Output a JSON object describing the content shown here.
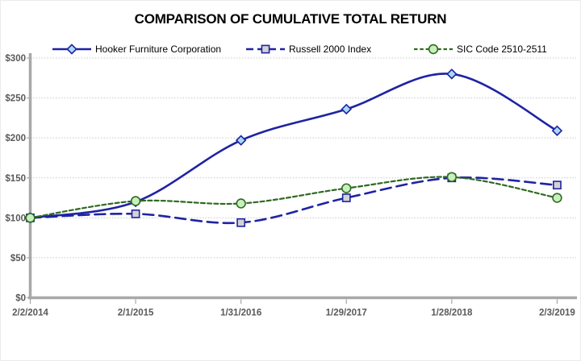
{
  "title": "COMPARISON OF CUMULATIVE TOTAL RETURN",
  "colors": {
    "background": "#ffffff",
    "grid": "#c9c9c9",
    "axis": "#a8a8a8",
    "tick_label": "#595959",
    "title_text": "#000000",
    "legend_text": "#000000",
    "navy": "#1f23a2",
    "green": "#2f6a22"
  },
  "chart_data": {
    "type": "line",
    "title": "COMPARISON OF CUMULATIVE TOTAL RETURN",
    "xlabel": "",
    "ylabel": "",
    "x_labels": [
      "2/2/2014",
      "2/1/2015",
      "1/31/2016",
      "1/29/2017",
      "1/28/2018",
      "2/3/2019"
    ],
    "y_tick_labels": [
      "$0",
      "$50",
      "$100",
      "$150",
      "$200",
      "$250",
      "$300"
    ],
    "y_tick_values": [
      0,
      50,
      100,
      150,
      200,
      250,
      300
    ],
    "ylim": [
      0,
      300
    ],
    "grid": "horizontal-dotted",
    "legend_position": "top",
    "series": [
      {
        "name": "Hooker Furniture Corporation",
        "values": [
          100,
          120,
          197,
          236,
          280,
          209
        ],
        "color": "#1f23a2",
        "line_style": "solid",
        "line_width": 2.6,
        "marker": "diamond",
        "marker_fill": "#a9d9f5"
      },
      {
        "name": "Russell 2000 Index",
        "values": [
          100,
          105,
          94,
          125,
          150,
          141
        ],
        "color": "#1f23a2",
        "line_style": "long-dash",
        "line_width": 2.6,
        "marker": "square",
        "marker_fill": "#d3d3d3"
      },
      {
        "name": "SIC Code 2510-2511",
        "values": [
          100,
          121,
          118,
          137,
          151,
          125
        ],
        "color": "#2f6a22",
        "line_style": "dash",
        "line_width": 2.2,
        "marker": "circle",
        "marker_fill": "#c7f0bd"
      }
    ]
  }
}
